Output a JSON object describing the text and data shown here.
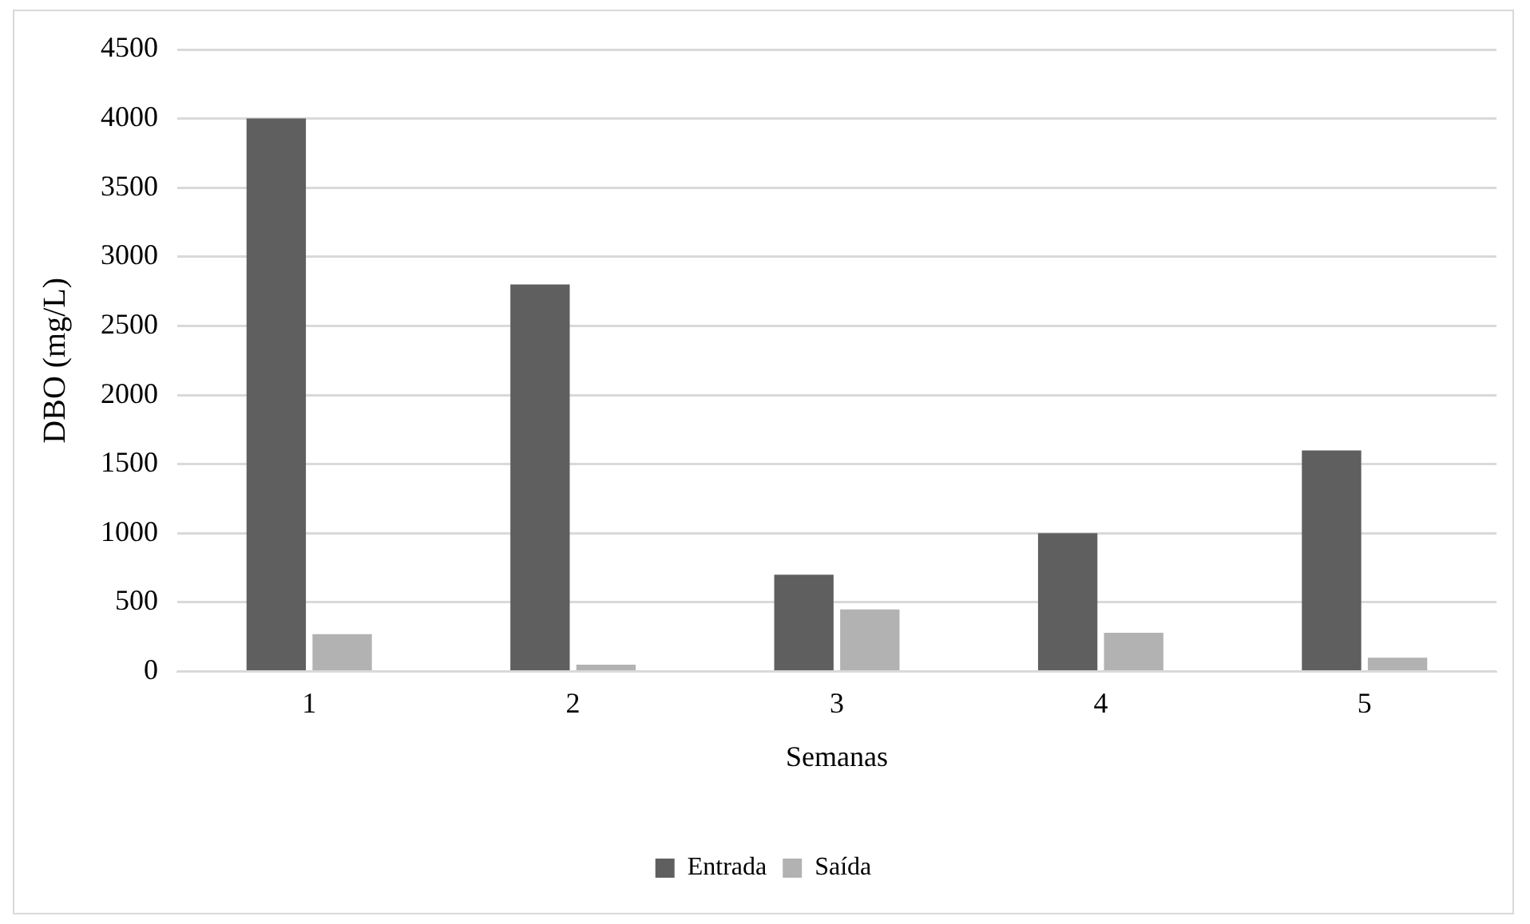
{
  "chart_data": {
    "type": "bar",
    "xlabel": "Semanas",
    "ylabel": "DBO (mg/L)",
    "categories": [
      "1",
      "2",
      "3",
      "4",
      "5"
    ],
    "series": [
      {
        "name": "Entrada",
        "color": "#5f5f5f",
        "values": [
          4000,
          2800,
          700,
          1000,
          1600
        ]
      },
      {
        "name": "Saída",
        "color": "#b2b2b2",
        "values": [
          270,
          50,
          450,
          280,
          100
        ]
      }
    ],
    "ylim": [
      0,
      4500
    ],
    "yticks": [
      0,
      500,
      1000,
      1500,
      2000,
      2500,
      3000,
      3500,
      4000,
      4500
    ],
    "grid": "y",
    "legend": "bottom"
  }
}
